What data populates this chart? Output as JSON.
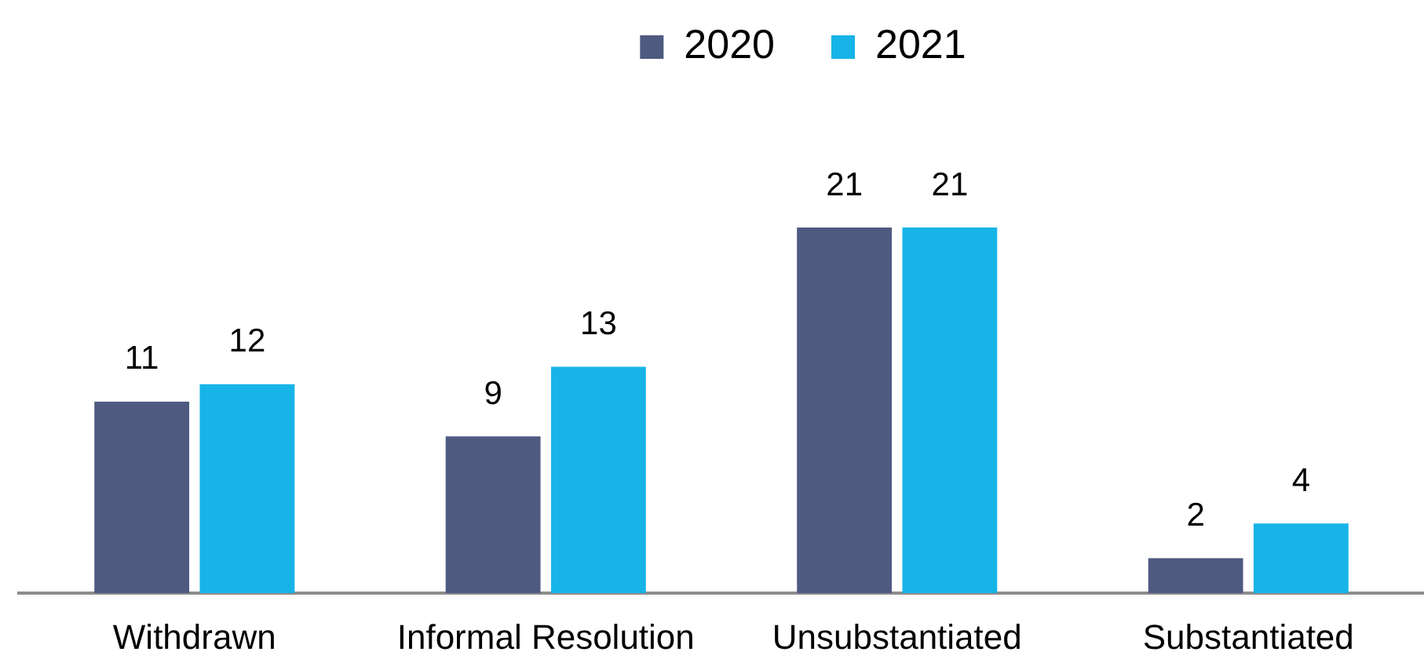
{
  "chart_data": {
    "type": "bar",
    "categories": [
      "Withdrawn",
      "Informal Resolution",
      "Unsubstantiated",
      "Substantiated"
    ],
    "series": [
      {
        "name": "2020",
        "color": "#4e5a80",
        "values": [
          11,
          9,
          21,
          2
        ]
      },
      {
        "name": "2021",
        "color": "#17b4e8",
        "values": [
          12,
          13,
          21,
          4
        ]
      }
    ],
    "data_labels": true,
    "legend": "top",
    "tick_labels": "x"
  }
}
